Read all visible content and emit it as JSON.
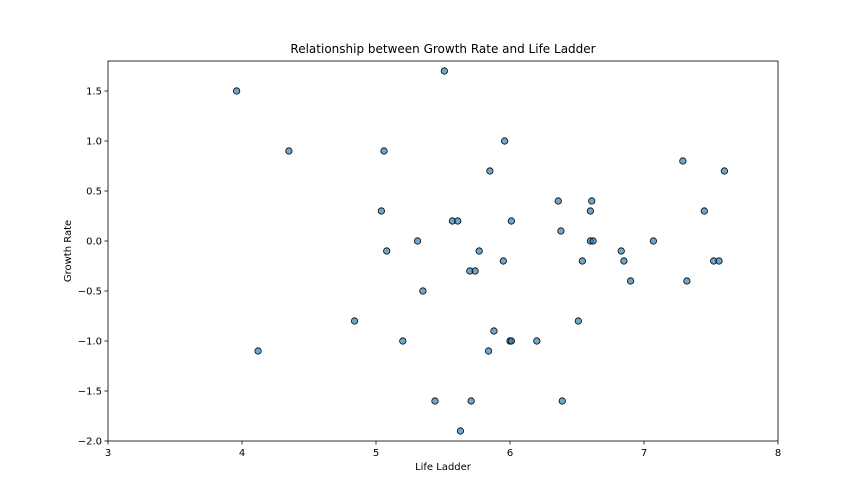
{
  "chart_data": {
    "type": "scatter",
    "title": "Relationship between Growth Rate and Life Ladder",
    "xlabel": "Life Ladder",
    "ylabel": "Growth Rate",
    "xlim": [
      3,
      8
    ],
    "ylim": [
      -2.0,
      1.8
    ],
    "xticks": [
      3,
      4,
      5,
      6,
      7,
      8
    ],
    "xtick_labels": [
      "3",
      "4",
      "5",
      "6",
      "7",
      "8"
    ],
    "yticks": [
      -2.0,
      -1.5,
      -1.0,
      -0.5,
      0.0,
      0.5,
      1.0,
      1.5
    ],
    "ytick_labels": [
      "−2.0",
      "−1.5",
      "−1.0",
      "−0.5",
      "0.0",
      "0.5",
      "1.0",
      "1.5"
    ],
    "grid": false,
    "colors": {
      "marker_fill": "#1f77b4",
      "marker_edge": "#000000",
      "axes": "#000000"
    },
    "points": [
      {
        "x": 3.96,
        "y": 1.5
      },
      {
        "x": 4.12,
        "y": -1.1
      },
      {
        "x": 4.35,
        "y": 0.9
      },
      {
        "x": 4.84,
        "y": -0.8
      },
      {
        "x": 5.04,
        "y": 0.3
      },
      {
        "x": 5.06,
        "y": 0.9
      },
      {
        "x": 5.08,
        "y": -0.1
      },
      {
        "x": 5.2,
        "y": -1.0
      },
      {
        "x": 5.31,
        "y": 0.0
      },
      {
        "x": 5.35,
        "y": -0.5
      },
      {
        "x": 5.44,
        "y": -1.6
      },
      {
        "x": 5.51,
        "y": 1.7
      },
      {
        "x": 5.57,
        "y": 0.2
      },
      {
        "x": 5.61,
        "y": 0.2
      },
      {
        "x": 5.63,
        "y": -1.9
      },
      {
        "x": 5.7,
        "y": -0.3
      },
      {
        "x": 5.71,
        "y": -1.6
      },
      {
        "x": 5.74,
        "y": -0.3
      },
      {
        "x": 5.77,
        "y": -0.1
      },
      {
        "x": 5.84,
        "y": -1.1
      },
      {
        "x": 5.85,
        "y": 0.7
      },
      {
        "x": 5.88,
        "y": -0.9
      },
      {
        "x": 5.95,
        "y": -0.2
      },
      {
        "x": 5.96,
        "y": 1.0
      },
      {
        "x": 6.0,
        "y": -1.0
      },
      {
        "x": 6.01,
        "y": -1.0
      },
      {
        "x": 6.01,
        "y": 0.2
      },
      {
        "x": 6.2,
        "y": -1.0
      },
      {
        "x": 6.36,
        "y": 0.4
      },
      {
        "x": 6.38,
        "y": 0.1
      },
      {
        "x": 6.39,
        "y": -1.6
      },
      {
        "x": 6.51,
        "y": -0.8
      },
      {
        "x": 6.54,
        "y": -0.2
      },
      {
        "x": 6.6,
        "y": 0.0
      },
      {
        "x": 6.6,
        "y": 0.3
      },
      {
        "x": 6.61,
        "y": 0.4
      },
      {
        "x": 6.62,
        "y": 0.0
      },
      {
        "x": 6.83,
        "y": -0.1
      },
      {
        "x": 6.85,
        "y": -0.2
      },
      {
        "x": 6.9,
        "y": -0.4
      },
      {
        "x": 7.07,
        "y": 0.0
      },
      {
        "x": 7.29,
        "y": 0.8
      },
      {
        "x": 7.32,
        "y": -0.4
      },
      {
        "x": 7.45,
        "y": 0.3
      },
      {
        "x": 7.52,
        "y": -0.2
      },
      {
        "x": 7.56,
        "y": -0.2
      },
      {
        "x": 7.6,
        "y": 0.7
      }
    ]
  }
}
